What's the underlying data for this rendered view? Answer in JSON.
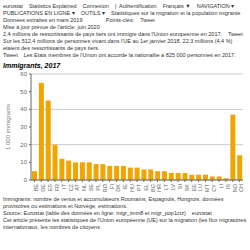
{
  "chart_data": {
    "type": "bar",
    "title": "Immigrants, 2017",
    "ylabel": "1 000 immigrants",
    "categories": [
      "BE",
      "DE",
      "ES",
      "FR",
      "IT",
      "CZ",
      "AT",
      "NL",
      "SE",
      "PL",
      "RO",
      "FI",
      "DK",
      "IE",
      "HU",
      "PT",
      "EL",
      "BG",
      "HR",
      "LT",
      "LV",
      "SI",
      "SK",
      "EE",
      "LU",
      "MT",
      "CY",
      "LI",
      "IS",
      "NO",
      "CH"
    ],
    "values": [
      5,
      55,
      45,
      20,
      12,
      11,
      10,
      10,
      10,
      9,
      9,
      8,
      8,
      8,
      7,
      7,
      6,
      6,
      5,
      5,
      4,
      4,
      4,
      3,
      3,
      3,
      2,
      2,
      1,
      37,
      14
    ],
    "color": "#f0a500",
    "ylim": [
      0,
      60
    ],
    "yticks": [
      0,
      10,
      20,
      30,
      40,
      50,
      60
    ],
    "grid": true,
    "annotations": [
      "eurostat",
      "Statistics Explained",
      "Connexion",
      "|  Authentification",
      "Français ▼",
      "NAVIGATION ▾",
      "PUBLICATIONS EN LIGNE ▾",
      "OUTILS ▾",
      "Statistiques sur la migration et la population migrante",
      "Données extraites en mars 2019\nMise à jour prévue de l'article: juin 2020",
      "Points-clés:",
      "Tweet",
      "2,4 millions de ressortissants de pays tiers ont immigre dans l'Union europeenne en 2017.",
      "Tweet",
      "Sur les 512,4 millions de personnes vivant dans l'UE au 1er janvier 2018, 22,3 millions (4,4 %) etaient des ressortissants de pays tiers.",
      "Tweet",
      "Les Etats membres de l'Union ont accorde la nationalite a 825 000 personnes en 2017.",
      "Immigrants: nombre de venus et accumulateurs Roumains, Espagnols, Hongrois, données provisoires ou estimations et Norvège, estimations.",
      "Source: Eurostat (table des données en ligne: migr_imm8 et migr_pop1ctz)",
      "eurostat",
      "Cet article présente les statistiques de l'Union européenne (UE) sur la migration (les flux migratoires internationaux, les nombres de citoyens"
    ]
  }
}
